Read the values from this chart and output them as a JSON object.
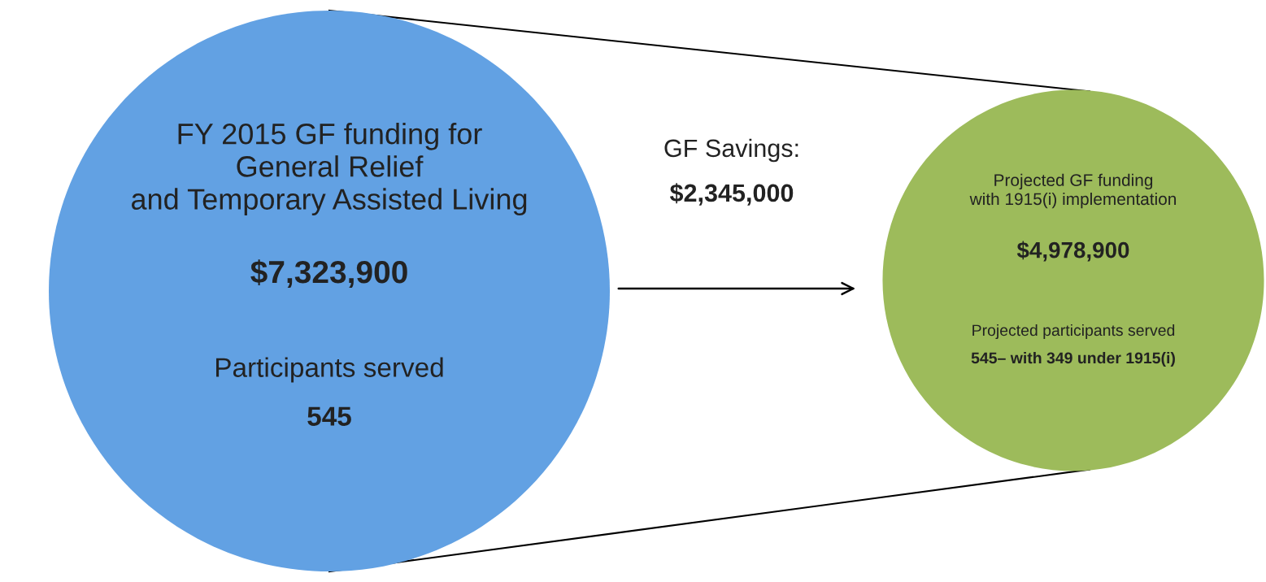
{
  "chart_data": {
    "type": "other",
    "categories": [
      "FY 2015 GF funding for\nGeneral Relief\nand Temporary Assisted Living",
      "Projected GF funding\nwith 1915(i) implementation"
    ],
    "values": [
      7323900,
      4978900
    ],
    "value_labels": [
      "$7,323,900",
      "$4,978,900"
    ],
    "colors": [
      "#62a1e3",
      "#9dbb5b"
    ],
    "annotations": [
      "GF Savings:",
      "$2,345,000",
      "Participants served",
      "545",
      "Projected participants served",
      "545– with 349 under 1915(i)"
    ]
  }
}
